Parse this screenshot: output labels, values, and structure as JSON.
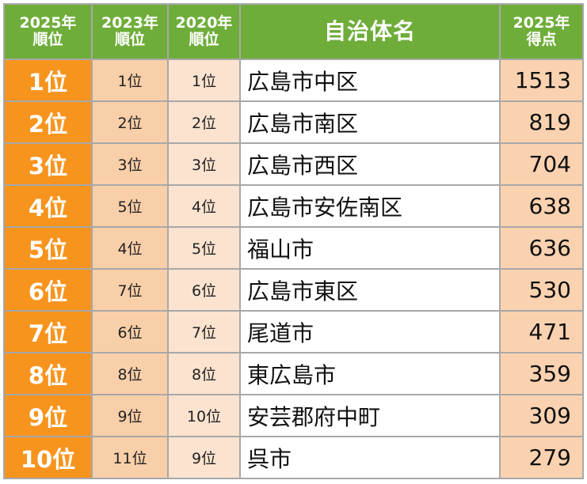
{
  "table": {
    "headers": {
      "rank_2025": [
        "2025年",
        "順位"
      ],
      "rank_2023": [
        "2023年",
        "順位"
      ],
      "rank_2020": [
        "2020年",
        "順位"
      ],
      "municipality": "自治体名",
      "score_2025": [
        "2025年",
        "得点"
      ]
    },
    "rows": [
      {
        "rank_2025": "1位",
        "rank_2023": "1位",
        "rank_2020": "1位",
        "name": "広島市中区",
        "score": "1513"
      },
      {
        "rank_2025": "2位",
        "rank_2023": "2位",
        "rank_2020": "2位",
        "name": "広島市南区",
        "score": "819"
      },
      {
        "rank_2025": "3位",
        "rank_2023": "3位",
        "rank_2020": "3位",
        "name": "広島市西区",
        "score": "704"
      },
      {
        "rank_2025": "4位",
        "rank_2023": "5位",
        "rank_2020": "4位",
        "name": "広島市安佐南区",
        "score": "638"
      },
      {
        "rank_2025": "5位",
        "rank_2023": "4位",
        "rank_2020": "5位",
        "name": "福山市",
        "score": "636"
      },
      {
        "rank_2025": "6位",
        "rank_2023": "7位",
        "rank_2020": "6位",
        "name": "広島市東区",
        "score": "530"
      },
      {
        "rank_2025": "7位",
        "rank_2023": "6位",
        "rank_2020": "7位",
        "name": "尾道市",
        "score": "471"
      },
      {
        "rank_2025": "8位",
        "rank_2023": "8位",
        "rank_2020": "8位",
        "name": "東広島市",
        "score": "359"
      },
      {
        "rank_2025": "9位",
        "rank_2023": "9位",
        "rank_2020": "10位",
        "name": "安芸郡府中町",
        "score": "309"
      },
      {
        "rank_2025": "10位",
        "rank_2023": "11位",
        "rank_2020": "9位",
        "name": "呉市",
        "score": "279"
      }
    ]
  },
  "colors": {
    "header_green": "#6fad3a",
    "rank_orange": "#f7941e",
    "rank_2023_peach": "#f9cfa9",
    "rank_2020_peach": "#fbe3cf",
    "score_peach": "#fbd2b0",
    "border_gray": "#a8a8a8"
  }
}
